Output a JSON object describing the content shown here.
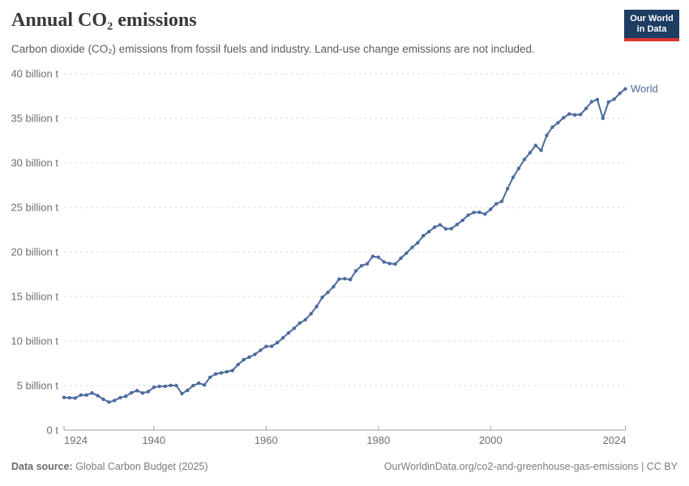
{
  "header": {
    "title": "Annual CO₂ emissions",
    "subtitle": "Carbon dioxide (CO₂) emissions from fossil fuels and industry. Land-use change emissions are not included.",
    "logo": {
      "line1": "Our World",
      "line2": "in Data"
    }
  },
  "footer": {
    "source_label": "Data source:",
    "source_text": " Global Carbon Budget (2025)",
    "right_text": "OurWorldinData.org/co2-and-greenhouse-gas-emissions | CC BY"
  },
  "colors": {
    "line": "#4c6a9c",
    "series_label": "#4c6a9c",
    "grid": "#dcdcdc",
    "axis": "#a3a3a3",
    "tick_label": "#6f6f6f",
    "title": "#383838",
    "subtitle": "#5b5b5b",
    "footer": "#7c7c7c",
    "logo_bg": "#1d3d63",
    "logo_stripe": "#d8352e"
  },
  "chart_data": {
    "type": "line",
    "title": "Annual CO₂ emissions",
    "unit": "billion t",
    "xlim": [
      1924,
      2024
    ],
    "ylim": [
      0,
      40
    ],
    "grid": "horizontal-dashed",
    "legend_position": "end-of-line",
    "x_ticks": [
      1924,
      1940,
      1960,
      1980,
      2000,
      2024
    ],
    "y_ticks": [
      0,
      5,
      10,
      15,
      20,
      25,
      30,
      35,
      40
    ],
    "y_tick_labels": [
      "0 t",
      "5 billion t",
      "10 billion t",
      "15 billion t",
      "20 billion t",
      "25 billion t",
      "30 billion t",
      "35 billion t",
      "40 billion t"
    ],
    "series": [
      {
        "name": "World",
        "color": "#4c6a9c",
        "years": [
          1924,
          1925,
          1926,
          1927,
          1928,
          1929,
          1930,
          1931,
          1932,
          1933,
          1934,
          1935,
          1936,
          1937,
          1938,
          1939,
          1940,
          1941,
          1942,
          1943,
          1944,
          1945,
          1946,
          1947,
          1948,
          1949,
          1950,
          1951,
          1952,
          1953,
          1954,
          1955,
          1956,
          1957,
          1958,
          1959,
          1960,
          1961,
          1962,
          1963,
          1964,
          1965,
          1966,
          1967,
          1968,
          1969,
          1970,
          1971,
          1972,
          1973,
          1974,
          1975,
          1976,
          1977,
          1978,
          1979,
          1980,
          1981,
          1982,
          1983,
          1984,
          1985,
          1986,
          1987,
          1988,
          1989,
          1990,
          1991,
          1992,
          1993,
          1994,
          1995,
          1996,
          1997,
          1998,
          1999,
          2000,
          2001,
          2002,
          2003,
          2004,
          2005,
          2006,
          2007,
          2008,
          2009,
          2010,
          2011,
          2012,
          2013,
          2014,
          2015,
          2016,
          2017,
          2018,
          2019,
          2020,
          2021,
          2022,
          2023,
          2024
        ],
        "values": [
          3.66,
          3.63,
          3.6,
          3.94,
          3.94,
          4.16,
          3.86,
          3.46,
          3.15,
          3.33,
          3.64,
          3.8,
          4.19,
          4.43,
          4.16,
          4.32,
          4.8,
          4.91,
          4.92,
          5.02,
          5.0,
          4.1,
          4.46,
          4.99,
          5.27,
          5.06,
          5.93,
          6.3,
          6.42,
          6.55,
          6.69,
          7.35,
          7.9,
          8.19,
          8.5,
          8.96,
          9.39,
          9.42,
          9.81,
          10.35,
          10.91,
          11.43,
          12.02,
          12.39,
          13.06,
          13.86,
          14.9,
          15.46,
          16.09,
          16.95,
          16.99,
          16.9,
          17.87,
          18.45,
          18.66,
          19.5,
          19.4,
          18.87,
          18.69,
          18.65,
          19.29,
          19.86,
          20.51,
          21.02,
          21.81,
          22.26,
          22.76,
          23.04,
          22.58,
          22.61,
          23.07,
          23.55,
          24.13,
          24.43,
          24.45,
          24.25,
          24.79,
          25.39,
          25.68,
          27.08,
          28.36,
          29.36,
          30.37,
          31.13,
          31.95,
          31.4,
          33.08,
          34.01,
          34.49,
          35.06,
          35.48,
          35.37,
          35.42,
          36.1,
          36.85,
          37.1,
          35.0,
          36.82,
          37.15,
          37.79,
          38.3
        ]
      }
    ]
  }
}
